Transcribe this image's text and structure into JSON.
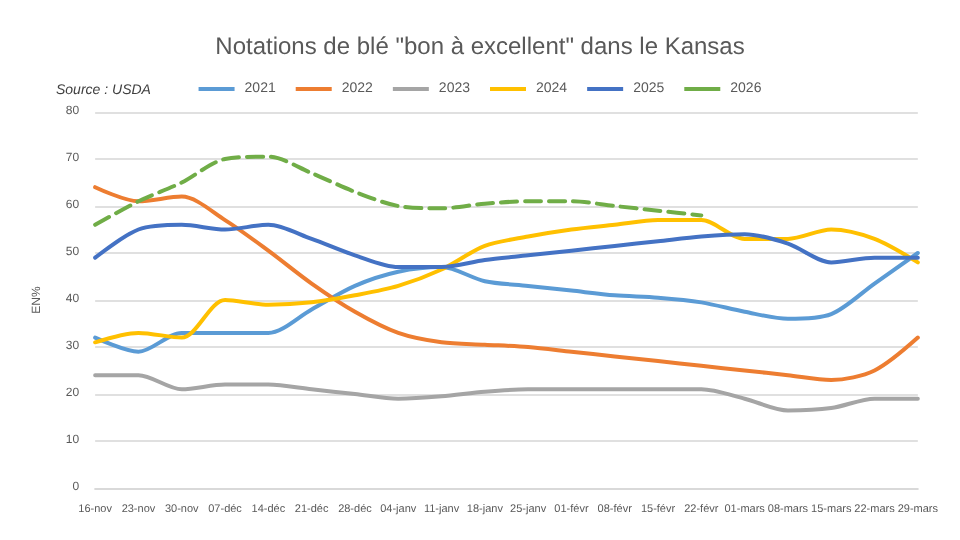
{
  "chart_data": {
    "type": "line",
    "title": "Notations de blé \"bon à excellent\" dans le Kansas",
    "ylabel": "EN%",
    "annotations": [
      "Source : USDA"
    ],
    "categories": [
      "16-nov",
      "23-nov",
      "30-nov",
      "07-déc",
      "14-déc",
      "21-déc",
      "28-déc",
      "04-janv",
      "11-janv",
      "18-janv",
      "25-janv",
      "01-févr",
      "08-févr",
      "15-févr",
      "22-févr",
      "01-mars",
      "08-mars",
      "15-mars",
      "22-mars",
      "29-mars"
    ],
    "ylim": [
      0,
      80
    ],
    "yticks": [
      0,
      10,
      20,
      30,
      40,
      50,
      60,
      70,
      80
    ],
    "grid": "y",
    "legend": "top",
    "marker": "none",
    "series": [
      {
        "name": "2021",
        "color": "#5b9bd5",
        "values": [
          32,
          29,
          33,
          33,
          33,
          38,
          43,
          46,
          47,
          44,
          43,
          42,
          41,
          40.5,
          39.5,
          37.5,
          36,
          37,
          43.5,
          50
        ]
      },
      {
        "name": "2022",
        "color": "#ed7d31",
        "values": [
          64,
          61,
          62,
          57,
          50.5,
          43.5,
          37.5,
          33,
          31,
          30.5,
          30,
          29,
          28,
          27,
          26,
          25,
          24,
          23,
          25,
          32
        ]
      },
      {
        "name": "2023",
        "color": "#a5a5a5",
        "values": [
          24,
          24,
          21,
          22,
          22,
          21,
          20,
          19,
          19.5,
          20.5,
          21,
          21,
          21,
          21,
          21,
          19,
          16.5,
          17,
          19,
          19
        ]
      },
      {
        "name": "2024",
        "color": "#ffc000",
        "values": [
          31,
          33,
          32,
          40,
          39,
          39.5,
          41,
          43,
          46.5,
          51.5,
          53.5,
          55,
          56,
          57,
          57,
          53,
          53,
          55,
          53,
          48
        ]
      },
      {
        "name": "2025",
        "color": "#4472c4",
        "values": [
          49,
          55,
          56,
          55,
          56,
          53,
          49.5,
          47,
          47,
          48.5,
          49.5,
          50.5,
          51.5,
          52.5,
          53.5,
          54,
          52,
          48,
          49,
          49
        ]
      },
      {
        "name": "2026",
        "color": "#70ad47",
        "line_style": "dashed",
        "values": [
          56,
          61,
          65,
          70,
          70.5,
          67,
          63,
          60,
          59.5,
          60.5,
          61,
          61,
          60,
          59,
          58,
          null,
          null,
          null,
          null,
          null
        ]
      }
    ]
  }
}
